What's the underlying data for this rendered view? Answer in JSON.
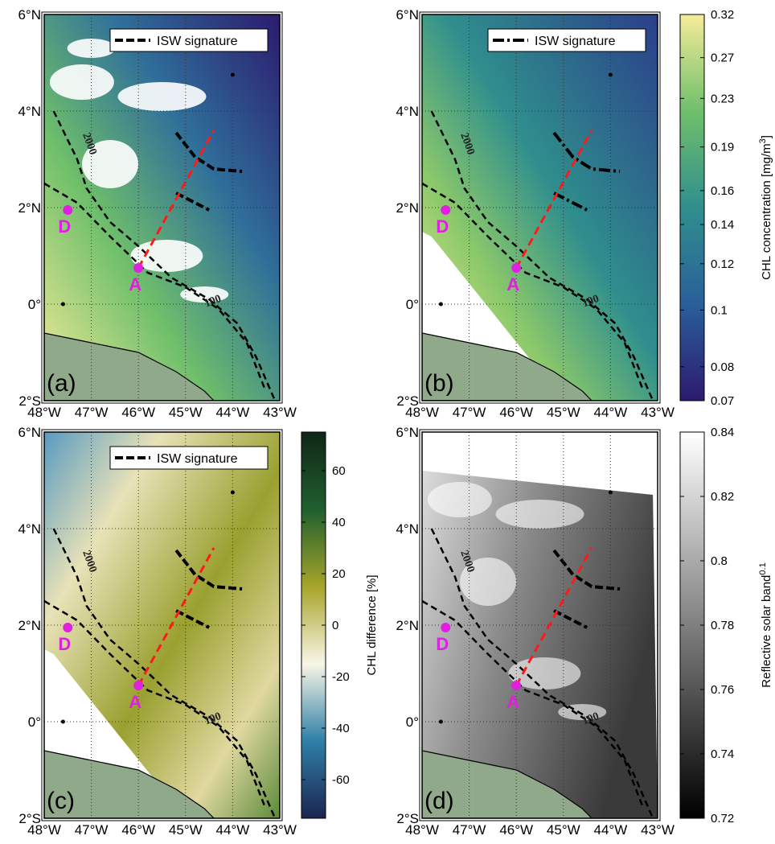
{
  "axes": {
    "xticks": [
      {
        "value": -48,
        "label": "48°W"
      },
      {
        "value": -47,
        "label": "47°W"
      },
      {
        "value": -46,
        "label": "46°W"
      },
      {
        "value": -45,
        "label": "45°W"
      },
      {
        "value": -44,
        "label": "44°W"
      },
      {
        "value": -43,
        "label": "43°W"
      }
    ],
    "yticks": [
      {
        "value": 6,
        "label": "6°N"
      },
      {
        "value": 4,
        "label": "4°N"
      },
      {
        "value": 2,
        "label": "2°N"
      },
      {
        "value": 0,
        "label": "0°"
      },
      {
        "value": -2,
        "label": "2°S"
      }
    ],
    "xlim": [
      -48,
      -43
    ],
    "ylim": [
      -2,
      6
    ]
  },
  "panels": [
    {
      "label": "(a)",
      "legend": "ISW signature",
      "points": [
        "D",
        "A"
      ],
      "contours": [
        "2000",
        "100"
      ]
    },
    {
      "label": "(b)",
      "legend": "ISW signature",
      "points": [
        "D",
        "A"
      ],
      "contours": [
        "2000",
        "100"
      ],
      "colorbar": {
        "label": [
          "CHL concentration [mg/m",
          "3",
          "]"
        ],
        "log": true,
        "clim": [
          0.07,
          0.32
        ],
        "ticks": [
          0.32,
          0.27,
          0.23,
          0.19,
          0.16,
          0.14,
          0.12,
          0.1,
          0.08,
          0.07
        ],
        "colors": [
          "#2c1a6e",
          "#2a5f9a",
          "#2f8f8d",
          "#6fbf6b",
          "#f6ec9a"
        ]
      }
    },
    {
      "label": "(c)",
      "legend": "ISW signature",
      "points": [
        "D",
        "A"
      ],
      "contours": [
        "2000",
        "100"
      ],
      "colorbar": {
        "label": [
          "CHL difference [%]"
        ],
        "log": false,
        "clim": [
          -75,
          75
        ],
        "ticks": [
          60,
          40,
          20,
          0,
          -20,
          -40,
          -60
        ],
        "colors": [
          "#1c2550",
          "#2f7fa8",
          "#f8f6e6",
          "#a7a42a",
          "#1f5f2e",
          "#102617"
        ]
      }
    },
    {
      "label": "(d)",
      "points": [
        "D",
        "A"
      ],
      "contours": [
        "2000",
        "100"
      ],
      "colorbar": {
        "label": [
          "Reflective solar band",
          "0.1"
        ],
        "log": false,
        "clim": [
          0.72,
          0.84
        ],
        "ticks": [
          0.84,
          0.82,
          0.8,
          0.78,
          0.76,
          0.74,
          0.72
        ],
        "colors": [
          "#000000",
          "#ffffff"
        ]
      }
    }
  ]
}
